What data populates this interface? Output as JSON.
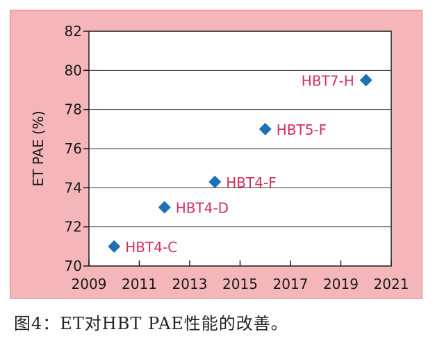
{
  "chart_data": {
    "type": "scatter",
    "title": "",
    "xlabel": "",
    "ylabel": "ET PAE (%)",
    "xlim": [
      2009,
      2021
    ],
    "ylim": [
      70,
      82
    ],
    "xticks": [
      2009,
      2011,
      2013,
      2015,
      2017,
      2019,
      2021
    ],
    "yticks": [
      70,
      72,
      74,
      76,
      78,
      80,
      82
    ],
    "grid": "horizontal",
    "marker_color": "#1f6fb5",
    "label_color": "#d0305a",
    "panel_color": "#f4b6b9",
    "points": [
      {
        "x": 2010,
        "y": 71.0,
        "label": "HBT4-C"
      },
      {
        "x": 2012,
        "y": 73.0,
        "label": "HBT4-D"
      },
      {
        "x": 2014,
        "y": 74.3,
        "label": "HBT4-F"
      },
      {
        "x": 2016,
        "y": 77.0,
        "label": "HBT5-F"
      },
      {
        "x": 2020,
        "y": 79.5,
        "label": "HBT7-H"
      }
    ]
  },
  "caption": "图4：ET对HBT PAE性能的改善。"
}
